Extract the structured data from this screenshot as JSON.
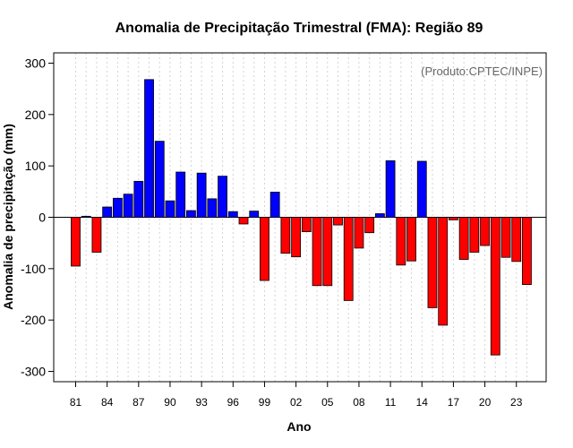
{
  "colors": {
    "positive": "#0000ff",
    "negative": "#ff0000",
    "border": "#000000",
    "grid": "#d3d3d3",
    "credit": "#666666"
  },
  "chart_data": {
    "type": "bar",
    "title": "Anomalia de Precipitação Trimestral (FMA): Região 89",
    "xlabel": "Ano",
    "ylabel": "Anomalia de precipitação (mm)",
    "credit": "(Produto:CPTEC/INPE)",
    "ylim": [
      -320,
      320
    ],
    "yticks": [
      -300,
      -200,
      -100,
      0,
      100,
      200,
      300
    ],
    "xtick_labels": [
      "81",
      "84",
      "87",
      "90",
      "93",
      "96",
      "99",
      "02",
      "05",
      "08",
      "11",
      "14",
      "17",
      "20",
      "23"
    ],
    "xtick_years": [
      1981,
      1984,
      1987,
      1990,
      1993,
      1996,
      1999,
      2002,
      2005,
      2008,
      2011,
      2014,
      2017,
      2020,
      2023
    ],
    "years": [
      1981,
      1982,
      1983,
      1984,
      1985,
      1986,
      1987,
      1988,
      1989,
      1990,
      1991,
      1992,
      1993,
      1994,
      1995,
      1996,
      1997,
      1998,
      1999,
      2000,
      2001,
      2002,
      2003,
      2004,
      2005,
      2006,
      2007,
      2008,
      2009,
      2010,
      2011,
      2012,
      2013,
      2014,
      2015,
      2016,
      2017,
      2018,
      2019,
      2020,
      2021,
      2022,
      2023,
      2024
    ],
    "values": [
      -95,
      2,
      -68,
      20,
      37,
      45,
      70,
      268,
      148,
      32,
      88,
      13,
      86,
      36,
      80,
      11,
      -13,
      12,
      -123,
      49,
      -70,
      -77,
      -28,
      -133,
      -133,
      -15,
      -162,
      -60,
      -30,
      7,
      110,
      -93,
      -85,
      109,
      -176,
      -210,
      -5,
      -82,
      -68,
      -55,
      -268,
      -78,
      -86,
      -131
    ]
  }
}
